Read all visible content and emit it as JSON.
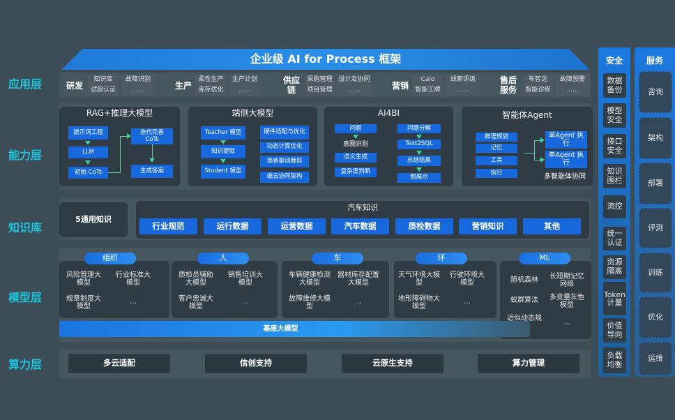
{
  "title": "企业级 AI for Process 框架",
  "layers": {
    "app": "应用层",
    "capability": "能力层",
    "knowledge": "知识库",
    "model": "模型层",
    "compute": "算力层"
  },
  "app": {
    "groups": [
      {
        "name": "研发",
        "items": [
          "知识库",
          "故障识别",
          "试验认证",
          "……"
        ]
      },
      {
        "name": "生产",
        "items": [
          "柔性生产",
          "生产计划",
          "库存优化",
          "……"
        ]
      },
      {
        "name": "供应链",
        "items": [
          "采购管理",
          "设计及协同",
          "项目管理",
          "……"
        ]
      },
      {
        "name": "营销",
        "items": [
          "Calo",
          "线索评级",
          "智能工牌",
          "……"
        ]
      },
      {
        "name": "售后服务",
        "items": [
          "车智见",
          "故障预警",
          "智能诊修",
          "……"
        ]
      }
    ]
  },
  "capability": {
    "rag": {
      "title": "RAG+推理大模型",
      "boxes": [
        "提示词工程",
        "LLM",
        "初始 CoTs",
        "迭代完善 CoTs",
        "生成答案"
      ]
    },
    "edge": {
      "title": "端侧大模型",
      "boxes": [
        "Teacher 模型",
        "知识提取",
        "Student 模型",
        "硬件适配与优化",
        "动态计算优化",
        "场景驱动裁剪",
        "端云协同架构"
      ]
    },
    "ai4bi": {
      "title": "AI4BI",
      "boxes": [
        "问题",
        "意图识别",
        "语义生成",
        "复杂度判断",
        "问题分解",
        "Text2SQL",
        "总结结果",
        "图展示"
      ]
    },
    "agent": {
      "title": "智能体Agent",
      "boxes": [
        "推理规划",
        "记忆",
        "工具",
        "执行",
        "单Agent 执行",
        "单Agent 执行"
      ],
      "caption": "多智能体协同"
    }
  },
  "knowledge": {
    "general": "5通用知识",
    "auto_title": "汽车知识",
    "items": [
      "行业规范",
      "运行数据",
      "运营数据",
      "汽车数据",
      "质检数据",
      "营销知识",
      "其他"
    ]
  },
  "model": {
    "groups": [
      {
        "name": "组织",
        "items": [
          "风险管理大模型",
          "行业标准大模型",
          "规章制度大模型",
          "…"
        ]
      },
      {
        "name": "人",
        "items": [
          "质检员辅助大模型",
          "销售培训大模型",
          "客户忠诚大模型",
          "…"
        ]
      },
      {
        "name": "车",
        "items": [
          "车辆健康检测大模型",
          "器材库存配置大模型",
          "故障维修大模型",
          "…"
        ]
      },
      {
        "name": "环",
        "items": [
          "天气环境大模型",
          "行驶环境大模型",
          "地形障碍物大模型",
          "…"
        ]
      },
      {
        "name": "ML",
        "items": [
          "随机森林",
          "长短期记忆网络",
          "蚁群算法",
          "多变量灰色模型",
          "近似动态规划",
          "…"
        ]
      }
    ],
    "base": "基座大模型"
  },
  "compute": {
    "items": [
      "多云适配",
      "信创支持",
      "云原生支持",
      "算力管理"
    ]
  },
  "security": {
    "title": "安全",
    "items": [
      "数据备份",
      "模型安全",
      "接口安全",
      "知识围栏",
      "流控",
      "统一认证",
      "资源隔离",
      "Token计量",
      "价值导向",
      "负载均衡"
    ]
  },
  "service": {
    "title": "服务",
    "items": [
      "咨询",
      "架构",
      "部署",
      "评测",
      "训练",
      "优化",
      "运维"
    ]
  },
  "colors": {
    "background": "#3c4d57",
    "accent_blue": "#1768dc",
    "layer_label": "#1fc3dc",
    "arrow": "#3fd29a"
  }
}
